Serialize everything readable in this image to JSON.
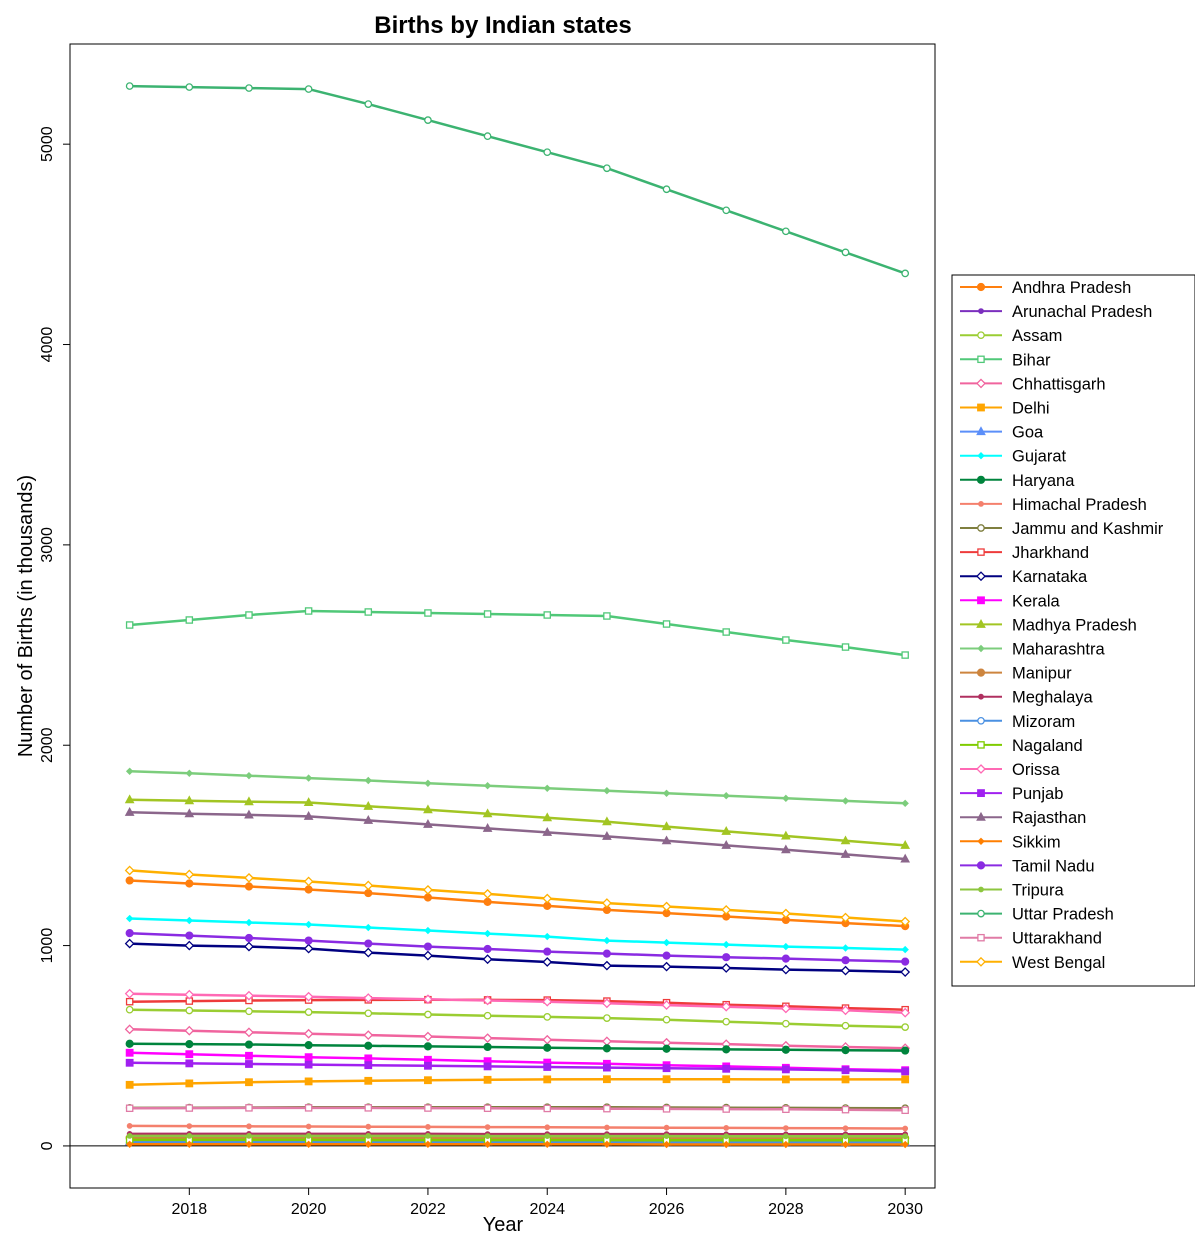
{
  "chart_data": {
    "type": "line",
    "title": "Births by Indian states",
    "xlabel": "Year",
    "ylabel": "Number of Births (in thousands)",
    "x": [
      2017,
      2018,
      2019,
      2020,
      2021,
      2022,
      2023,
      2024,
      2025,
      2026,
      2027,
      2028,
      2029,
      2030
    ],
    "xlim": [
      2016.0,
      2030.5
    ],
    "ylim": [
      -210,
      5500
    ],
    "x_ticks": [
      2018,
      2020,
      2022,
      2024,
      2026,
      2028,
      2030
    ],
    "y_ticks": [
      0,
      1000,
      2000,
      3000,
      4000,
      5000
    ],
    "zero_line": true,
    "grid": false,
    "legend_position": "right",
    "series": [
      {
        "name": "Andhra Pradesh",
        "color": "#FF7F0E",
        "marker": "circle-filled",
        "values": [
          1325,
          1310,
          1295,
          1280,
          1262,
          1240,
          1218,
          1198,
          1178,
          1162,
          1145,
          1128,
          1112,
          1097
        ]
      },
      {
        "name": "Arunachal Pradesh",
        "color": "#7B2FBE",
        "marker": "small-circle",
        "values": [
          21,
          21,
          21,
          21,
          21,
          20,
          20,
          20,
          20,
          20,
          19,
          19,
          19,
          19
        ]
      },
      {
        "name": "Assam",
        "color": "#9ACD32",
        "marker": "circle-open",
        "values": [
          680,
          676,
          672,
          668,
          662,
          656,
          650,
          644,
          638,
          630,
          620,
          610,
          600,
          593
        ]
      },
      {
        "name": "Bihar",
        "color": "#50C878",
        "marker": "square-open",
        "values": [
          2600,
          2625,
          2650,
          2670,
          2665,
          2660,
          2655,
          2650,
          2645,
          2605,
          2565,
          2525,
          2490,
          2450
        ]
      },
      {
        "name": "Chhattisgarh",
        "color": "#F0649E",
        "marker": "diamond-open",
        "values": [
          582,
          575,
          567,
          560,
          553,
          546,
          538,
          530,
          522,
          515,
          508,
          500,
          494,
          488
        ]
      },
      {
        "name": "Delhi",
        "color": "#FFA500",
        "marker": "square-filled",
        "values": [
          305,
          312,
          318,
          322,
          325,
          328,
          330,
          332,
          333,
          333,
          333,
          332,
          332,
          332
        ]
      },
      {
        "name": "Goa",
        "color": "#5B8FF9",
        "marker": "triangle-filled",
        "values": [
          20,
          20,
          20,
          20,
          20,
          20,
          19,
          19,
          19,
          19,
          19,
          19,
          18,
          18
        ]
      },
      {
        "name": "Gujarat",
        "color": "#00FFFF",
        "marker": "small-diamond",
        "values": [
          1135,
          1125,
          1115,
          1105,
          1090,
          1075,
          1060,
          1045,
          1025,
          1015,
          1005,
          995,
          988,
          980
        ]
      },
      {
        "name": "Haryana",
        "color": "#00843D",
        "marker": "circle-filled",
        "values": [
          510,
          508,
          506,
          503,
          500,
          497,
          494,
          490,
          487,
          485,
          482,
          480,
          478,
          476
        ]
      },
      {
        "name": "Himachal Pradesh",
        "color": "#F4806D",
        "marker": "small-circle",
        "values": [
          100,
          99,
          98,
          97,
          96,
          95,
          94,
          93,
          92,
          91,
          90,
          89,
          88,
          87
        ]
      },
      {
        "name": "Jammu and Kashmir",
        "color": "#7F7F3F",
        "marker": "circle-open",
        "values": [
          190,
          191,
          192,
          193,
          193,
          193,
          193,
          193,
          193,
          192,
          191,
          190,
          189,
          188
        ]
      },
      {
        "name": "Jharkhand",
        "color": "#EE3B3B",
        "marker": "square-open",
        "values": [
          720,
          723,
          726,
          728,
          729,
          730,
          729,
          728,
          723,
          715,
          705,
          697,
          688,
          680
        ]
      },
      {
        "name": "Karnataka",
        "color": "#000080",
        "marker": "diamond-open",
        "values": [
          1010,
          1000,
          995,
          985,
          965,
          950,
          932,
          918,
          900,
          895,
          888,
          880,
          875,
          868
        ]
      },
      {
        "name": "Kerala",
        "color": "#FF00FF",
        "marker": "square-filled",
        "values": [
          465,
          458,
          450,
          443,
          437,
          430,
          423,
          416,
          410,
          403,
          397,
          390,
          383,
          378
        ]
      },
      {
        "name": "Madhya Pradesh",
        "color": "#A2C523",
        "marker": "triangle-filled",
        "values": [
          1728,
          1723,
          1718,
          1714,
          1695,
          1678,
          1658,
          1638,
          1618,
          1594,
          1570,
          1547,
          1523,
          1500
        ]
      },
      {
        "name": "Maharashtra",
        "color": "#7CCD7C",
        "marker": "small-diamond",
        "values": [
          1870,
          1860,
          1848,
          1836,
          1824,
          1810,
          1798,
          1785,
          1773,
          1760,
          1748,
          1735,
          1722,
          1710
        ]
      },
      {
        "name": "Manipur",
        "color": "#CD853F",
        "marker": "circle-filled",
        "values": [
          40,
          40,
          40,
          40,
          40,
          40,
          40,
          40,
          40,
          40,
          39,
          39,
          39,
          39
        ]
      },
      {
        "name": "Meghalaya",
        "color": "#B03060",
        "marker": "small-circle",
        "values": [
          60,
          60,
          60,
          60,
          60,
          60,
          59,
          59,
          59,
          59,
          58,
          58,
          58,
          58
        ]
      },
      {
        "name": "Mizoram",
        "color": "#4A90E2",
        "marker": "circle-open",
        "values": [
          17,
          17,
          17,
          17,
          17,
          17,
          17,
          17,
          17,
          16,
          16,
          16,
          16,
          16
        ]
      },
      {
        "name": "Nagaland",
        "color": "#7FCC00",
        "marker": "square-open",
        "values": [
          30,
          30,
          30,
          30,
          29,
          29,
          29,
          29,
          29,
          28,
          28,
          28,
          28,
          28
        ]
      },
      {
        "name": "Orissa",
        "color": "#FF69B4",
        "marker": "diamond-open",
        "values": [
          760,
          755,
          750,
          745,
          738,
          732,
          726,
          720,
          712,
          703,
          695,
          686,
          677,
          665
        ]
      },
      {
        "name": "Punjab",
        "color": "#A020F0",
        "marker": "square-filled",
        "values": [
          415,
          412,
          409,
          406,
          403,
          400,
          397,
          394,
          391,
          388,
          385,
          382,
          378,
          372
        ]
      },
      {
        "name": "Rajasthan",
        "color": "#8B668B",
        "marker": "triangle-filled",
        "values": [
          1665,
          1658,
          1652,
          1645,
          1625,
          1605,
          1585,
          1565,
          1545,
          1523,
          1500,
          1478,
          1455,
          1432
        ]
      },
      {
        "name": "Sikkim",
        "color": "#FF7F00",
        "marker": "small-diamond",
        "values": [
          8,
          8,
          8,
          8,
          8,
          8,
          8,
          8,
          8,
          7,
          7,
          7,
          7,
          7
        ]
      },
      {
        "name": "Tamil Nadu",
        "color": "#8A2BE2",
        "marker": "circle-filled",
        "values": [
          1062,
          1050,
          1038,
          1025,
          1010,
          995,
          983,
          970,
          960,
          950,
          942,
          935,
          927,
          920
        ]
      },
      {
        "name": "Tripura",
        "color": "#8DC63F",
        "marker": "small-circle",
        "values": [
          50,
          50,
          50,
          50,
          50,
          50,
          49,
          49,
          49,
          49,
          48,
          48,
          48,
          48
        ]
      },
      {
        "name": "Uttar Pradesh",
        "color": "#3CB371",
        "marker": "circle-open",
        "values": [
          5290,
          5285,
          5280,
          5275,
          5200,
          5120,
          5040,
          4960,
          4880,
          4775,
          4670,
          4565,
          4460,
          4355
        ]
      },
      {
        "name": "Uttarakhand",
        "color": "#E07BA6",
        "marker": "square-open",
        "values": [
          188,
          189,
          190,
          190,
          190,
          189,
          188,
          187,
          186,
          185,
          184,
          183,
          181,
          178
        ]
      },
      {
        "name": "West Bengal",
        "color": "#FFB000",
        "marker": "diamond-open",
        "values": [
          1375,
          1355,
          1338,
          1320,
          1300,
          1278,
          1258,
          1235,
          1212,
          1195,
          1178,
          1160,
          1140,
          1120
        ]
      }
    ]
  }
}
